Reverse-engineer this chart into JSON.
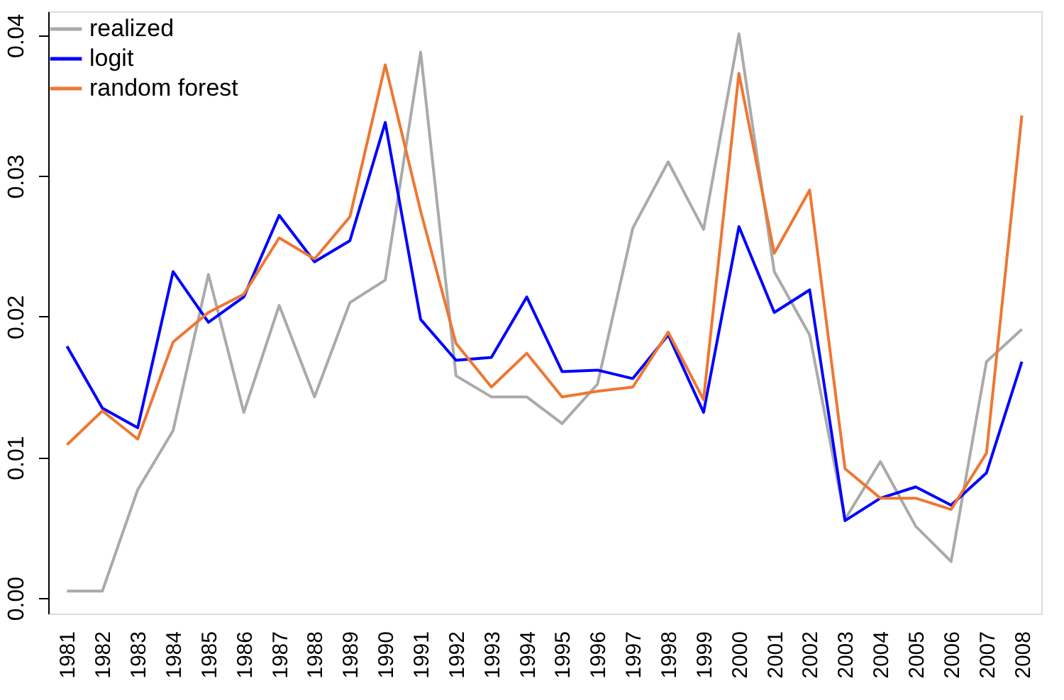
{
  "chart_data": {
    "type": "line",
    "categories": [
      "1981",
      "1982",
      "1983",
      "1984",
      "1985",
      "1986",
      "1987",
      "1988",
      "1989",
      "1990",
      "1991",
      "1992",
      "1993",
      "1994",
      "1995",
      "1996",
      "1997",
      "1998",
      "1999",
      "2000",
      "2001",
      "2002",
      "2003",
      "2004",
      "2005",
      "2006",
      "2007",
      "2008"
    ],
    "series": [
      {
        "name": "realized",
        "color": "#aaaaaa",
        "values": [
          0.0005,
          0.0005,
          0.0077,
          0.0119,
          0.023,
          0.0132,
          0.0208,
          0.0143,
          0.021,
          0.0226,
          0.0388,
          0.0158,
          0.0143,
          0.0143,
          0.0124,
          0.0152,
          0.0263,
          0.031,
          0.0262,
          0.0401,
          0.0232,
          0.0187,
          0.0056,
          0.0097,
          0.0051,
          0.0026,
          0.0168,
          0.0191
        ]
      },
      {
        "name": "logit",
        "color": "#0000ff",
        "values": [
          0.0179,
          0.0135,
          0.0121,
          0.0232,
          0.0196,
          0.0214,
          0.0272,
          0.0239,
          0.0254,
          0.0338,
          0.0198,
          0.0169,
          0.0171,
          0.0214,
          0.0161,
          0.0162,
          0.0156,
          0.0187,
          0.0132,
          0.0264,
          0.0203,
          0.0219,
          0.0055,
          0.0071,
          0.0079,
          0.0066,
          0.0089,
          0.0168
        ]
      },
      {
        "name": "random forest",
        "color": "#ee7733",
        "values": [
          0.0109,
          0.0133,
          0.0113,
          0.0182,
          0.0203,
          0.0216,
          0.0256,
          0.0241,
          0.0271,
          0.0379,
          0.0275,
          0.0181,
          0.015,
          0.0174,
          0.0143,
          0.0147,
          0.015,
          0.0189,
          0.0141,
          0.0373,
          0.0245,
          0.029,
          0.0092,
          0.0071,
          0.0071,
          0.0063,
          0.0103,
          0.0343
        ]
      }
    ],
    "ylim": [
      -0.0011,
      0.0417
    ],
    "yticks": [
      {
        "value": 0,
        "label": "0.00"
      },
      {
        "value": 0.01,
        "label": "0.01"
      },
      {
        "value": 0.02,
        "label": "0.02"
      },
      {
        "value": 0.03,
        "label": "0.03"
      },
      {
        "value": 0.04,
        "label": "0.04"
      }
    ],
    "grid": false,
    "legend": "top left",
    "marker": "none",
    "line_style": "solid"
  }
}
